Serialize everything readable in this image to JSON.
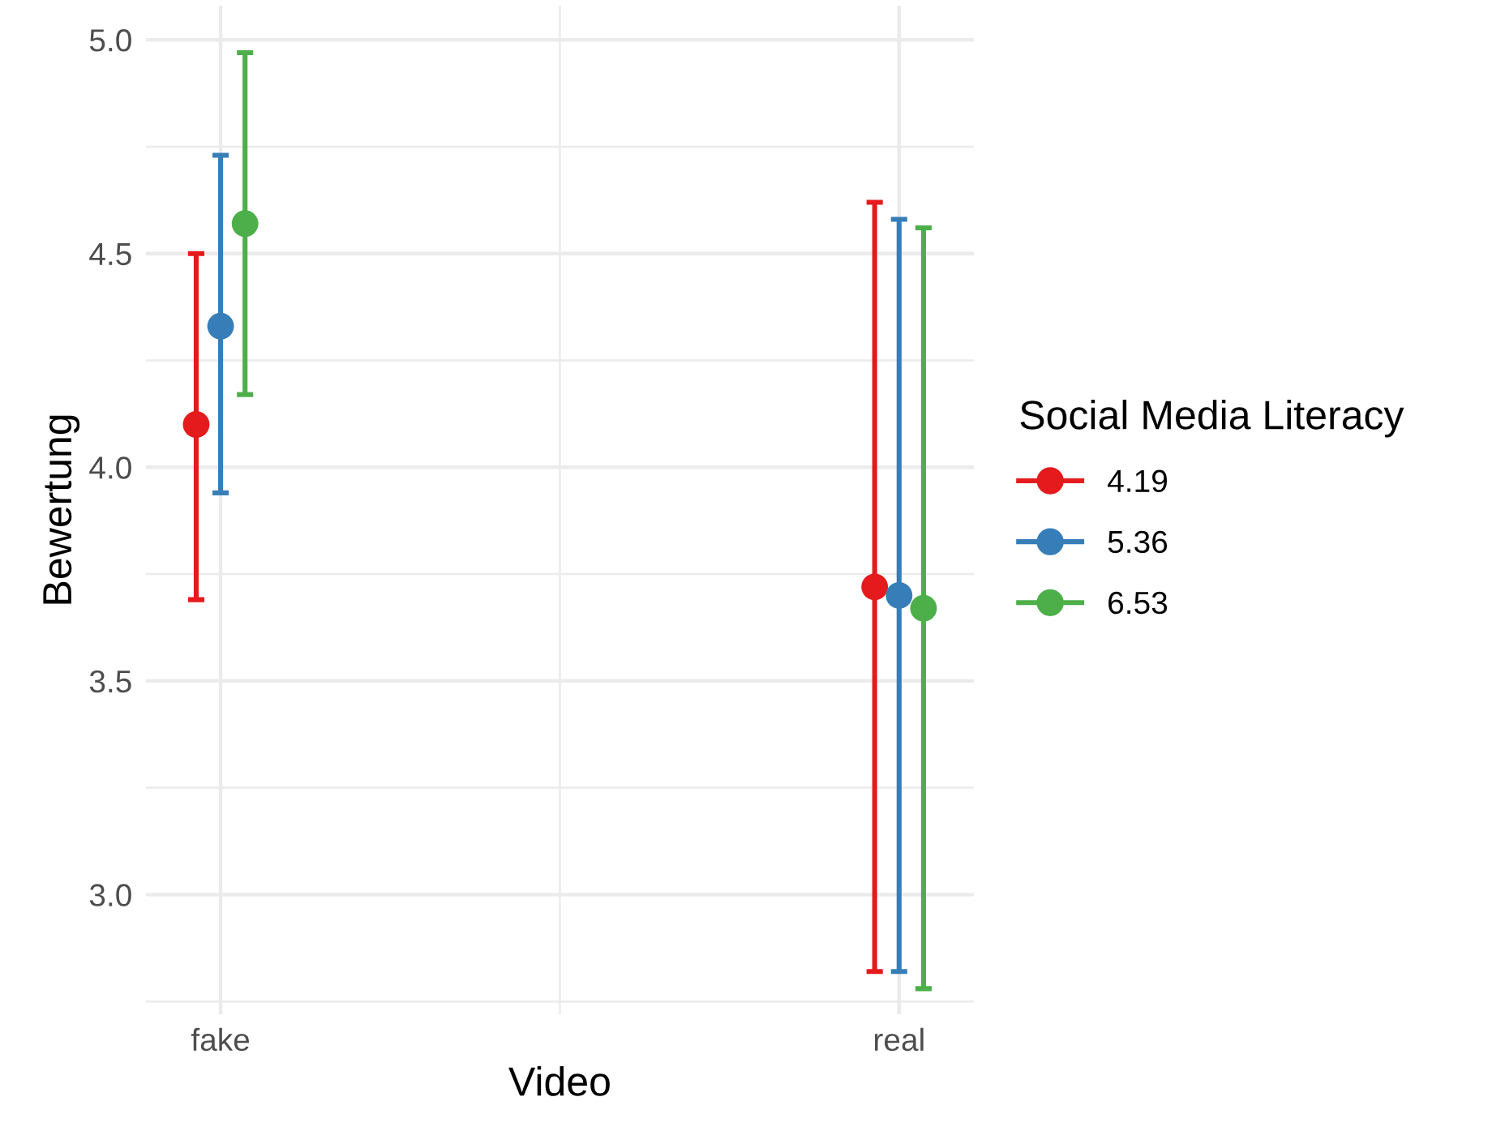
{
  "chart_data": {
    "type": "scatter",
    "xlabel": "Video",
    "ylabel": "Bewertung",
    "legend_title": "Social Media Literacy",
    "categories": [
      "fake",
      "real"
    ],
    "series": [
      {
        "name": "4.19",
        "color": "#e41a1c",
        "values": [
          4.1,
          3.72
        ],
        "errors": [
          [
            3.69,
            4.5
          ],
          [
            2.82,
            4.62
          ]
        ]
      },
      {
        "name": "5.36",
        "color": "#377eb8",
        "values": [
          4.33,
          3.7
        ],
        "errors": [
          [
            3.94,
            4.73
          ],
          [
            2.82,
            4.58
          ]
        ]
      },
      {
        "name": "6.53",
        "color": "#4daf4a",
        "values": [
          4.57,
          3.67
        ],
        "errors": [
          [
            4.17,
            4.97
          ],
          [
            2.78,
            4.56
          ]
        ]
      }
    ],
    "ylim": [
      2.72,
      5.08
    ],
    "yticks": [
      {
        "value": 3,
        "label": "3.0"
      },
      3.5,
      {
        "value": 4,
        "label": "4.0"
      },
      4.5,
      {
        "value": 5,
        "label": "5.0"
      }
    ],
    "grid": true,
    "legend": "right",
    "marker": "circle"
  }
}
